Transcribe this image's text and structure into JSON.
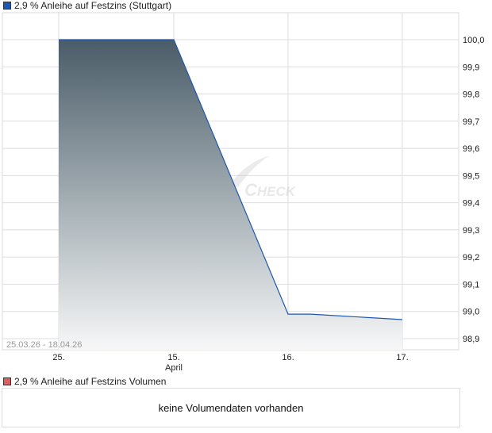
{
  "legend": {
    "price_label": "2,9 % Anleihe auf Festzins (Stuttgart)",
    "price_color": "#1e56b4",
    "volume_label": "2,9 % Anleihe auf Festzins Volumen",
    "volume_color": "#d86060"
  },
  "watermark": "CHECK",
  "volume_message": "keine Volumendaten vorhanden",
  "chart_data": {
    "type": "area",
    "date_range": "25.03.26 - 18.04.26",
    "x_ticks": [
      "25.",
      "15.",
      "16.",
      "17."
    ],
    "x_month_label": "April",
    "yticks": [
      "100,0",
      "99,9",
      "99,8",
      "99,7",
      "99,6",
      "99,5",
      "99,4",
      "99,3",
      "99,2",
      "99,1",
      "99,0",
      "98,9"
    ],
    "ylim": [
      98.86,
      100.1
    ],
    "grid": true,
    "points": [
      {
        "x": 0,
        "y": 100.0
      },
      {
        "x": 1,
        "y": 100.0
      },
      {
        "x": 2,
        "y": 98.99
      },
      {
        "x": 2.2,
        "y": 98.99
      },
      {
        "x": 2.4,
        "y": 98.985
      },
      {
        "x": 2.6,
        "y": 98.98
      },
      {
        "x": 2.8,
        "y": 98.975
      },
      {
        "x": 3,
        "y": 98.97
      }
    ]
  }
}
